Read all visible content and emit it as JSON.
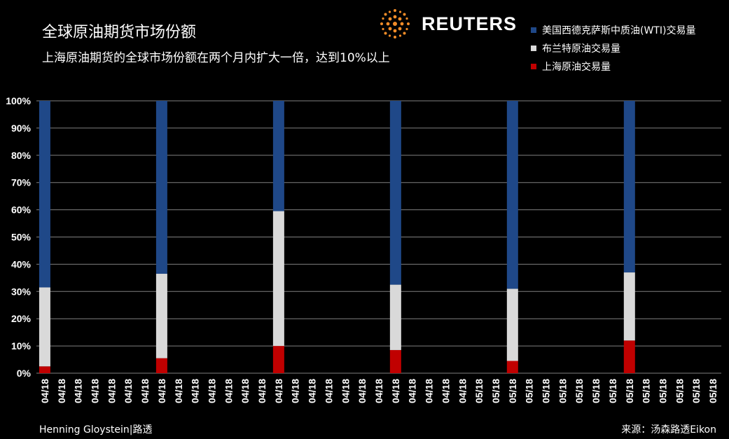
{
  "header": {
    "title": "全球原油期货市场份额",
    "subtitle": "上海原油期货的全球市场份额在两个月内扩大一倍，达到10%以上",
    "logo_text": "REUTERS",
    "logo_icon": "reuters-dot-logo-icon"
  },
  "footer": {
    "author": "Henning Gloystein|路透",
    "source": "来源：汤森路透Eikon"
  },
  "colors": {
    "background": "#000000",
    "wti": "#1f4888",
    "brent": "#d9d9d9",
    "shanghai": "#c00000",
    "gridline": "#7f7f7f",
    "logo_orange": "#f28c28"
  },
  "chart_data": {
    "type": "bar",
    "stacked": true,
    "categories": [
      "04/18",
      "04/18",
      "04/18",
      "04/18",
      "04/18",
      "04/18",
      "04/18",
      "04/18",
      "04/18",
      "04/18",
      "04/18",
      "04/18",
      "04/18",
      "04/18",
      "04/18",
      "04/18",
      "04/18",
      "04/18",
      "04/18",
      "04/18",
      "04/18",
      "04/18",
      "04/18",
      "04/18",
      "04/18",
      "04/18",
      "05/18",
      "05/18",
      "05/18",
      "05/18",
      "05/18",
      "05/18",
      "05/18",
      "05/18",
      "05/18",
      "05/18",
      "05/18",
      "05/18",
      "05/18",
      "05/18",
      "05/18"
    ],
    "yticks": [
      "0%",
      "10%",
      "20%",
      "30%",
      "40%",
      "50%",
      "60%",
      "70%",
      "80%",
      "90%",
      "100%"
    ],
    "ylim": [
      0,
      100
    ],
    "grid": true,
    "legend_position": "top-right",
    "series": [
      {
        "name": "上海原油交易量",
        "color": "#c00000",
        "values": [
          2.5,
          null,
          null,
          null,
          null,
          null,
          null,
          5.5,
          null,
          null,
          null,
          null,
          null,
          null,
          10,
          null,
          null,
          null,
          null,
          null,
          null,
          8.5,
          null,
          null,
          null,
          null,
          null,
          null,
          4.5,
          null,
          null,
          null,
          null,
          null,
          null,
          12,
          null,
          null,
          null,
          null,
          null
        ]
      },
      {
        "name": "布兰特原油交易量",
        "color": "#d9d9d9",
        "values": [
          29,
          null,
          null,
          null,
          null,
          null,
          null,
          31,
          null,
          null,
          null,
          null,
          null,
          null,
          49.5,
          null,
          null,
          null,
          null,
          null,
          null,
          24,
          null,
          null,
          null,
          null,
          null,
          null,
          26.5,
          null,
          null,
          null,
          null,
          null,
          null,
          25,
          null,
          null,
          null,
          null,
          null
        ]
      },
      {
        "name": "美国西德克萨斯中质油(WTI)交易量",
        "color": "#1f4888",
        "values": [
          68.5,
          null,
          null,
          null,
          null,
          null,
          null,
          63.5,
          null,
          null,
          null,
          null,
          null,
          null,
          40.5,
          null,
          null,
          null,
          null,
          null,
          null,
          67.5,
          null,
          null,
          null,
          null,
          null,
          null,
          69,
          null,
          null,
          null,
          null,
          null,
          null,
          63,
          null,
          null,
          null,
          null,
          null
        ]
      }
    ],
    "bar_indices": [
      0,
      7,
      14,
      21,
      28,
      35
    ]
  }
}
